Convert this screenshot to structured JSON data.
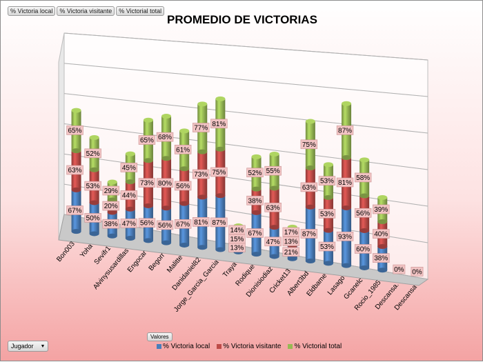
{
  "filter_buttons": [
    "% Victoria local",
    "% Victoria visitante",
    "% Victorial total"
  ],
  "title": "PROMEDIO DE VICTORIAS",
  "values_button": "Valores",
  "field_button": "Jugador",
  "colors": {
    "local": "#4a7ebb",
    "visitante": "#be4b48",
    "total": "#98b954"
  },
  "chart_data": {
    "type": "bar",
    "stacked": true,
    "three_d": true,
    "title": "PROMEDIO DE VICTORIAS",
    "categories": [
      "Bon003",
      "Yoha",
      "Sevifr1",
      "Alvinysusardillas",
      "Engocar",
      "Begorr",
      "Malitte",
      "Danidaniel82",
      "Jorge_Garcia_Garcia",
      "Traya",
      "Rodique",
      "Dionisiodiaz",
      "Cricket13",
      "Albert3bd",
      "Eldbame",
      "Lasago",
      "Gcanelc",
      "Rocio_1985",
      "Descansa.",
      "Descansa"
    ],
    "series": [
      {
        "name": "% Victoria local",
        "values": [
          67,
          50,
          38,
          47,
          56,
          56,
          67,
          81,
          87,
          13,
          67,
          47,
          21,
          87,
          53,
          93,
          60,
          38,
          0,
          0
        ],
        "labels": [
          "67%",
          "50%",
          "38%",
          "47%",
          "56%",
          "56%",
          "67%",
          "81%",
          "87%",
          "13%",
          "67%",
          "47%",
          "21%",
          "87%",
          "53%",
          "93%",
          "60%",
          "38%",
          "0%",
          "0%"
        ]
      },
      {
        "name": "% Victoria visitante",
        "values": [
          63,
          53,
          20,
          44,
          73,
          80,
          56,
          73,
          75,
          15,
          38,
          63,
          13,
          63,
          53,
          81,
          56,
          40,
          0,
          0
        ],
        "labels": [
          "63%",
          "53%",
          "20%",
          "44%",
          "73%",
          "80%",
          "56%",
          "73%",
          "75%",
          "15%",
          "38%",
          "63%",
          "13%",
          "63%",
          "53%",
          "81%",
          "56%",
          "40%",
          "",
          ""
        ]
      },
      {
        "name": "% Victorial total",
        "values": [
          65,
          52,
          29,
          45,
          65,
          68,
          61,
          77,
          81,
          14,
          52,
          55,
          17,
          75,
          53,
          87,
          58,
          39,
          0,
          0
        ],
        "labels": [
          "65%",
          "52%",
          "29%",
          "45%",
          "65%",
          "68%",
          "61%",
          "77%",
          "81%",
          "14%",
          "52%",
          "55%",
          "17%",
          "75%",
          "53%",
          "87%",
          "58%",
          "39%",
          "",
          ""
        ]
      }
    ],
    "legend_position": "bottom",
    "grid": true
  }
}
